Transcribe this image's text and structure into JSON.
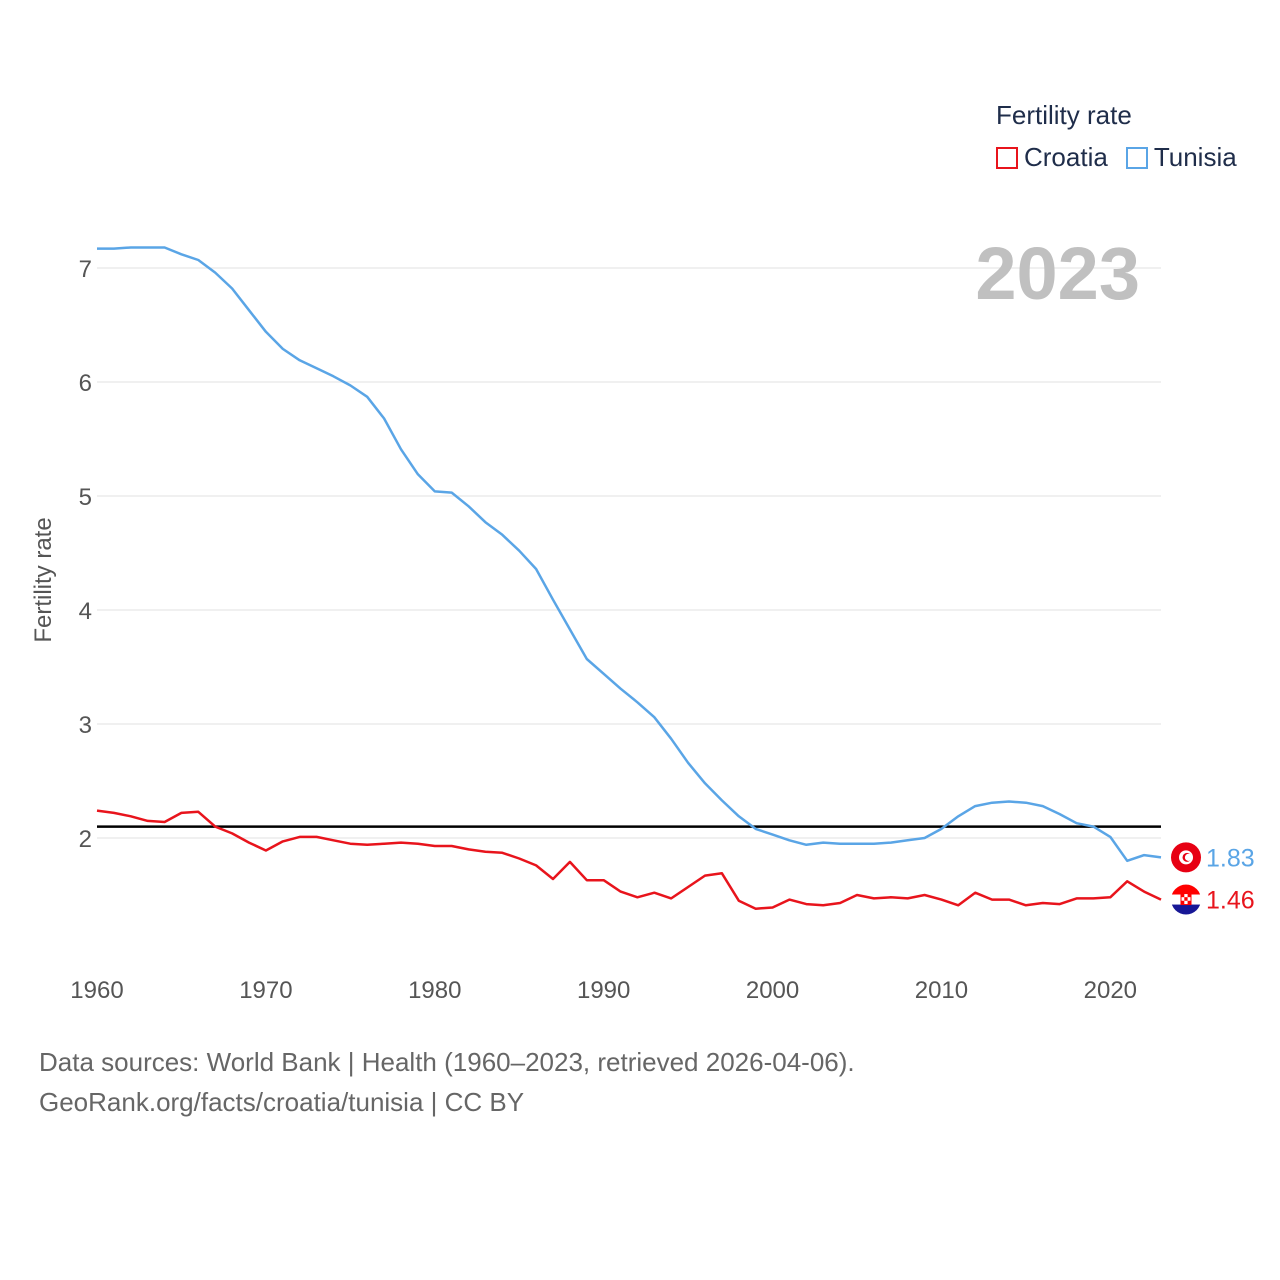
{
  "legend": {
    "title": "Fertility rate",
    "items": [
      {
        "label": "Croatia",
        "color": "#e8141c"
      },
      {
        "label": "Tunisia",
        "color": "#5aa5e6"
      }
    ]
  },
  "footer": {
    "line1": "Data sources: World Bank | Health (1960–2023, retrieved 2026-04-06).",
    "line2": "GeoRank.org/facts/croatia/tunisia | CC BY"
  },
  "chart_data": {
    "type": "line",
    "title": "Fertility rate",
    "year_label": "2023",
    "xlabel": "",
    "ylabel": "Fertility rate",
    "xlim": [
      1960,
      2023
    ],
    "ylim": [
      1.0,
      7.3
    ],
    "xticks": [
      1960,
      1970,
      1980,
      1990,
      2000,
      2010,
      2020
    ],
    "yticks": [
      2,
      3,
      4,
      5,
      6,
      7
    ],
    "reference_line": 2.1,
    "x": [
      1960,
      1961,
      1962,
      1963,
      1964,
      1965,
      1966,
      1967,
      1968,
      1969,
      1970,
      1971,
      1972,
      1973,
      1974,
      1975,
      1976,
      1977,
      1978,
      1979,
      1980,
      1981,
      1982,
      1983,
      1984,
      1985,
      1986,
      1987,
      1988,
      1989,
      1990,
      1991,
      1992,
      1993,
      1994,
      1995,
      1996,
      1997,
      1998,
      1999,
      2000,
      2001,
      2002,
      2003,
      2004,
      2005,
      2006,
      2007,
      2008,
      2009,
      2010,
      2011,
      2012,
      2013,
      2014,
      2015,
      2016,
      2017,
      2018,
      2019,
      2020,
      2021,
      2022,
      2023
    ],
    "series": [
      {
        "name": "Tunisia",
        "color": "#5aa5e6",
        "end_label": "1.83",
        "values": [
          7.17,
          7.17,
          7.18,
          7.18,
          7.18,
          7.12,
          7.07,
          6.96,
          6.82,
          6.63,
          6.44,
          6.29,
          6.19,
          6.12,
          6.05,
          5.97,
          5.87,
          5.68,
          5.41,
          5.19,
          5.04,
          5.03,
          4.91,
          4.77,
          4.66,
          4.52,
          4.36,
          4.09,
          3.83,
          3.57,
          3.44,
          3.31,
          3.19,
          3.06,
          2.87,
          2.66,
          2.48,
          2.33,
          2.19,
          2.08,
          2.03,
          1.98,
          1.94,
          1.96,
          1.95,
          1.95,
          1.95,
          1.96,
          1.98,
          2.0,
          2.08,
          2.19,
          2.28,
          2.31,
          2.32,
          2.31,
          2.28,
          2.21,
          2.13,
          2.1,
          2.01,
          1.8,
          1.85,
          1.83
        ]
      },
      {
        "name": "Croatia",
        "color": "#e8141c",
        "end_label": "1.46",
        "values": [
          2.24,
          2.22,
          2.19,
          2.15,
          2.14,
          2.22,
          2.23,
          2.1,
          2.04,
          1.96,
          1.89,
          1.97,
          2.01,
          2.01,
          1.98,
          1.95,
          1.94,
          1.95,
          1.96,
          1.95,
          1.93,
          1.93,
          1.9,
          1.88,
          1.87,
          1.82,
          1.76,
          1.64,
          1.79,
          1.63,
          1.63,
          1.53,
          1.48,
          1.52,
          1.47,
          1.57,
          1.67,
          1.69,
          1.45,
          1.38,
          1.39,
          1.46,
          1.42,
          1.41,
          1.43,
          1.5,
          1.47,
          1.48,
          1.47,
          1.5,
          1.46,
          1.41,
          1.52,
          1.46,
          1.46,
          1.41,
          1.43,
          1.42,
          1.47,
          1.47,
          1.48,
          1.62,
          1.53,
          1.46
        ]
      }
    ]
  }
}
